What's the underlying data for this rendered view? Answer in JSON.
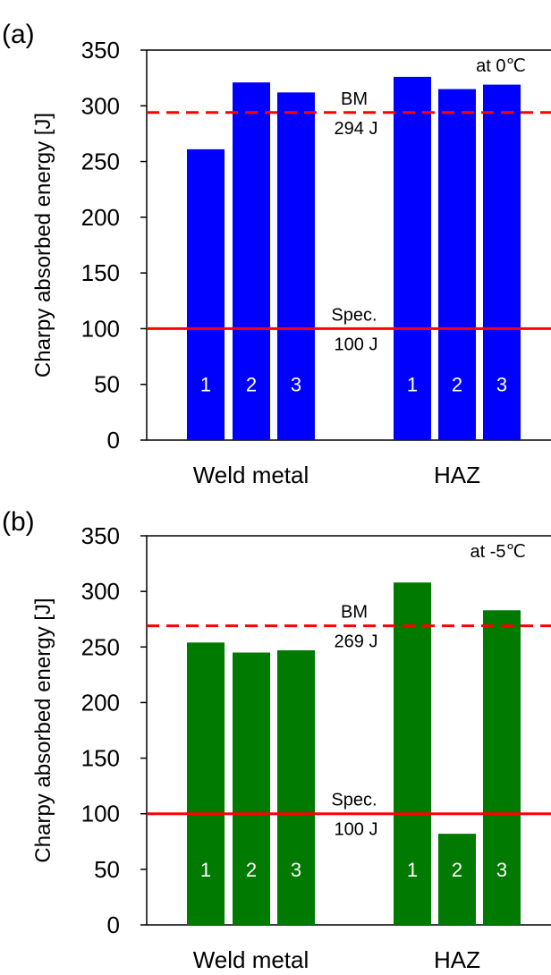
{
  "chart_data": [
    {
      "panel_label": "(a)",
      "type": "bar",
      "ylabel": "Charpy absorbed energy [J]",
      "ylim": [
        0,
        350
      ],
      "yticks": [
        0,
        50,
        100,
        150,
        200,
        250,
        300,
        350
      ],
      "groups": [
        {
          "label": "Weld metal",
          "bar_labels": [
            "1",
            "2",
            "3"
          ],
          "values": [
            261,
            321,
            312
          ]
        },
        {
          "label": "HAZ",
          "bar_labels": [
            "1",
            "2",
            "3"
          ],
          "values": [
            326,
            315,
            319
          ]
        }
      ],
      "bar_color": "#0000FF",
      "condition": "at 0℃",
      "reference_lines": [
        {
          "label_line1": "BM",
          "label_line2": "294 J",
          "value": 294,
          "style": "dashed",
          "color": "#FF0000"
        },
        {
          "label_line1": "Spec.",
          "label_line2": "100 J",
          "value": 100,
          "style": "solid",
          "color": "#FF0000"
        }
      ]
    },
    {
      "panel_label": "(b)",
      "type": "bar",
      "ylabel": "Charpy absorbed energy [J]",
      "ylim": [
        0,
        350
      ],
      "yticks": [
        0,
        50,
        100,
        150,
        200,
        250,
        300,
        350
      ],
      "groups": [
        {
          "label": "Weld metal",
          "bar_labels": [
            "1",
            "2",
            "3"
          ],
          "values": [
            254,
            245,
            247
          ]
        },
        {
          "label": "HAZ",
          "bar_labels": [
            "1",
            "2",
            "3"
          ],
          "values": [
            308,
            82,
            283
          ]
        }
      ],
      "bar_color": "#007A00",
      "condition": "at -5℃",
      "reference_lines": [
        {
          "label_line1": "BM",
          "label_line2": "269 J",
          "value": 269,
          "style": "dashed",
          "color": "#FF0000"
        },
        {
          "label_line1": "Spec.",
          "label_line2": "100 J",
          "value": 100,
          "style": "solid",
          "color": "#FF0000"
        }
      ]
    }
  ]
}
